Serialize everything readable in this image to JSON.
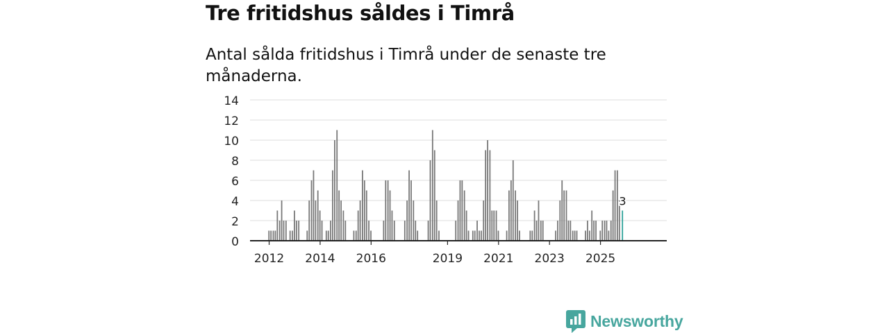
{
  "title": "Tre fritidshus såldes i Timrå",
  "subtitle": "Antal sålda fritidshus i Timrå under de senaste tre månaderna.",
  "brand": {
    "name": "Newsworthy",
    "color": "#47a69e"
  },
  "colors": {
    "bar": "#777777",
    "highlight": "#2aa198",
    "grid": "#dddddd",
    "axis": "#222222"
  },
  "chart_data": {
    "type": "bar",
    "title": "Tre fritidshus såldes i Timrå",
    "xlabel": "",
    "ylabel": "",
    "ylim": [
      0,
      14
    ],
    "yticks": [
      0,
      2,
      4,
      6,
      8,
      10,
      12,
      14
    ],
    "xticks": [
      "2012",
      "2014",
      "2016",
      "2019",
      "2021",
      "2023",
      "2025"
    ],
    "xtick_positions": [
      2012.0,
      2014.0,
      2016.0,
      2019.0,
      2021.0,
      2023.0,
      2025.0
    ],
    "x_domain": [
      2011.25,
      2027.6
    ],
    "bar_width_years": 0.065,
    "grid": true,
    "highlight": {
      "x": 2025.87,
      "value": 3,
      "label": "3"
    },
    "series": [
      {
        "name": "Antal sålda fritidshus",
        "x": [
          2012.0,
          2012.08,
          2012.17,
          2012.25,
          2012.33,
          2012.42,
          2012.5,
          2012.58,
          2012.67,
          2012.83,
          2012.92,
          2013.0,
          2013.08,
          2013.17,
          2013.5,
          2013.58,
          2013.67,
          2013.75,
          2013.83,
          2013.92,
          2014.0,
          2014.08,
          2014.25,
          2014.33,
          2014.42,
          2014.5,
          2014.58,
          2014.67,
          2014.75,
          2014.83,
          2014.92,
          2015.0,
          2015.33,
          2015.42,
          2015.5,
          2015.58,
          2015.67,
          2015.75,
          2015.83,
          2015.92,
          2016.0,
          2016.5,
          2016.58,
          2016.67,
          2016.75,
          2016.83,
          2016.92,
          2017.33,
          2017.42,
          2017.5,
          2017.58,
          2017.67,
          2017.75,
          2017.83,
          2018.25,
          2018.33,
          2018.42,
          2018.5,
          2018.58,
          2018.67,
          2019.33,
          2019.42,
          2019.5,
          2019.58,
          2019.67,
          2019.75,
          2019.83,
          2020.0,
          2020.08,
          2020.17,
          2020.25,
          2020.33,
          2020.42,
          2020.5,
          2020.58,
          2020.67,
          2020.75,
          2020.83,
          2020.92,
          2021.0,
          2021.33,
          2021.42,
          2021.5,
          2021.58,
          2021.67,
          2021.75,
          2021.83,
          2022.25,
          2022.33,
          2022.42,
          2022.5,
          2022.58,
          2022.67,
          2022.75,
          2023.25,
          2023.33,
          2023.42,
          2023.5,
          2023.58,
          2023.67,
          2023.75,
          2023.83,
          2023.92,
          2024.0,
          2024.08,
          2024.42,
          2024.5,
          2024.58,
          2024.67,
          2024.75,
          2024.83,
          2025.0,
          2025.08,
          2025.17,
          2025.25,
          2025.33,
          2025.42,
          2025.5,
          2025.58,
          2025.67,
          2025.75,
          2025.87
        ],
        "values": [
          1,
          1,
          1,
          1,
          3,
          2,
          4,
          2,
          2,
          1,
          1,
          3,
          2,
          2,
          1,
          4,
          6,
          7,
          4,
          5,
          3,
          2,
          1,
          1,
          2,
          7,
          10,
          11,
          5,
          4,
          3,
          2,
          1,
          1,
          3,
          4,
          7,
          6,
          5,
          2,
          1,
          2,
          6,
          6,
          5,
          3,
          2,
          2,
          4,
          7,
          6,
          4,
          2,
          1,
          2,
          8,
          11,
          9,
          4,
          1,
          2,
          4,
          6,
          6,
          5,
          3,
          1,
          1,
          1,
          2,
          1,
          1,
          4,
          9,
          10,
          9,
          3,
          3,
          3,
          1,
          1,
          5,
          6,
          8,
          5,
          4,
          1,
          1,
          1,
          3,
          2,
          4,
          2,
          2,
          1,
          2,
          4,
          6,
          5,
          5,
          2,
          2,
          1,
          1,
          1,
          1,
          2,
          1,
          3,
          2,
          2,
          1,
          2,
          2,
          2,
          1,
          2,
          5,
          7,
          7,
          4,
          3
        ]
      }
    ]
  }
}
